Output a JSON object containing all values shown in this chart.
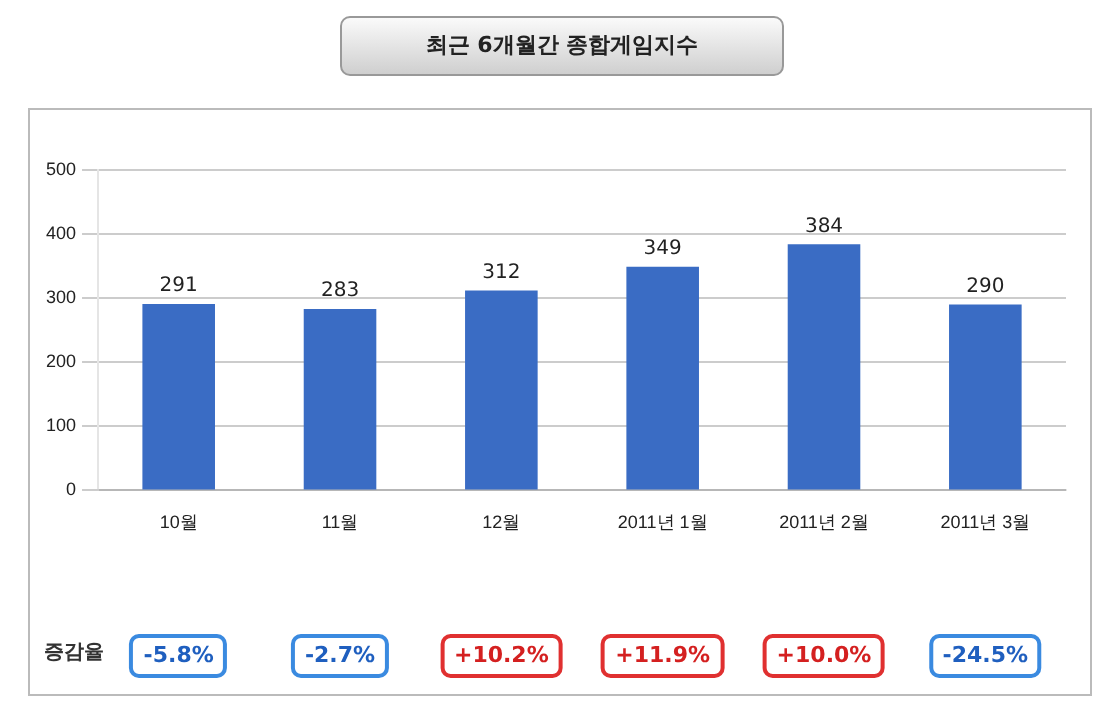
{
  "chart_data": {
    "type": "bar",
    "title": "최근 6개월간 종합게임지수",
    "categories": [
      "10월",
      "11월",
      "12월",
      "2011년 1월",
      "2011년 2월",
      "2011년 3월"
    ],
    "values": [
      291,
      283,
      312,
      349,
      384,
      290
    ],
    "color": "#3a6cc4",
    "ylim": [
      0,
      500
    ],
    "yticks": [
      0,
      100,
      200,
      300,
      400,
      500
    ],
    "grid": "y",
    "data_labels": true,
    "legend": false,
    "annotations": [
      "증감율",
      "-5.8%",
      "-2.7%",
      "+10.2%",
      "+11.9%",
      "+10.0%",
      "-24.5%"
    ]
  }
}
